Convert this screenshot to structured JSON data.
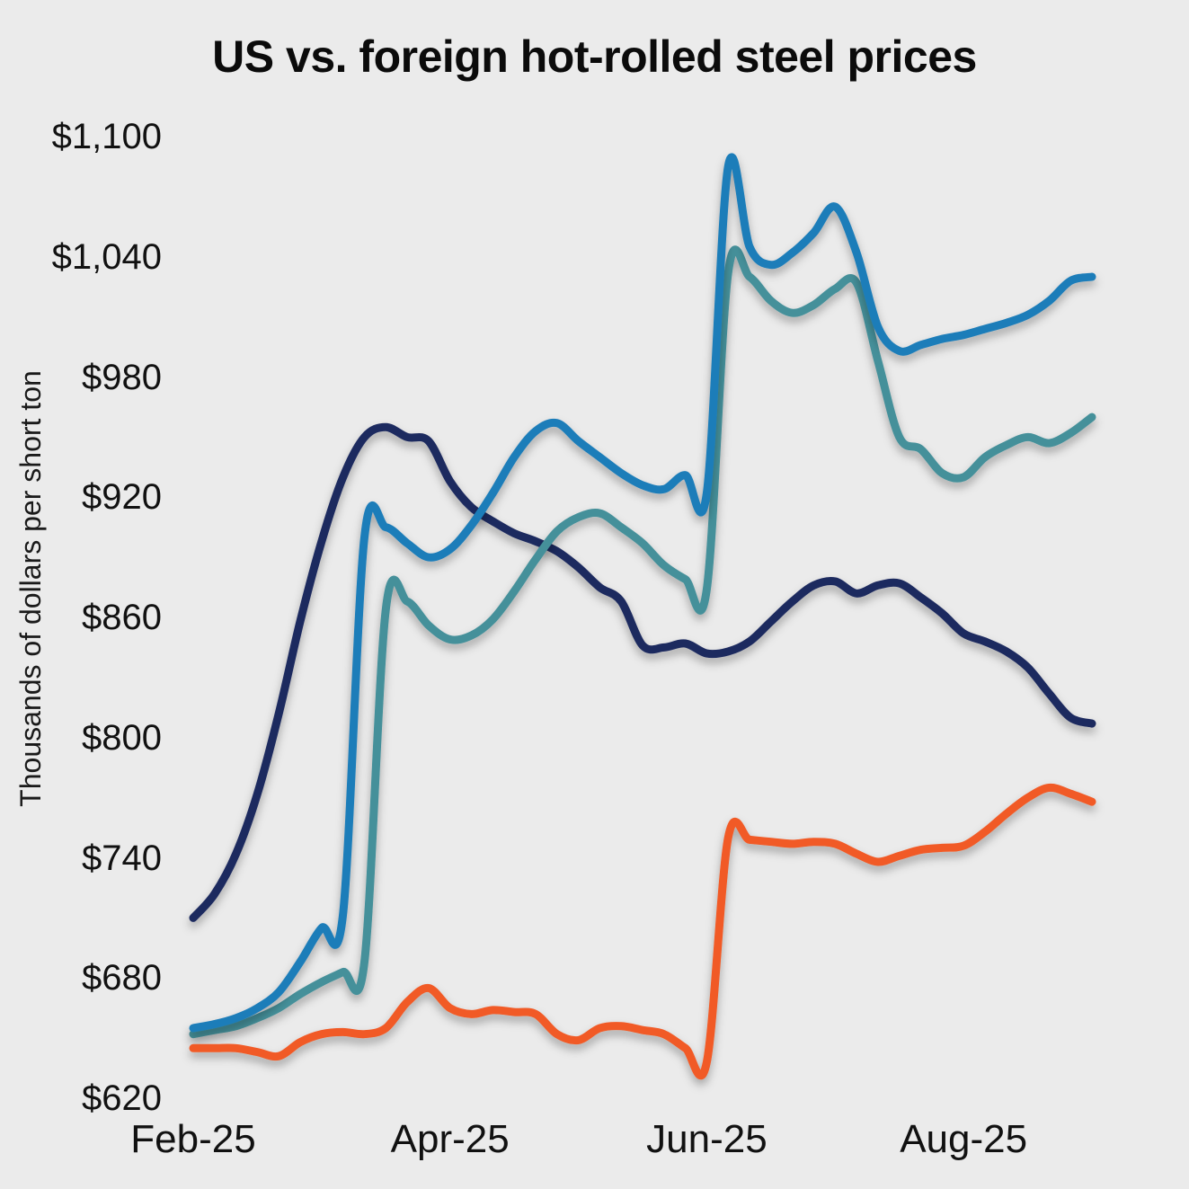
{
  "chart_data": {
    "type": "line",
    "title": "US vs. foreign hot-rolled steel prices",
    "xlabel": "",
    "ylabel": "Thousands of dollars per short ton",
    "units": "dollars per short ton",
    "background_color": "#ebebeb",
    "grid": false,
    "legend_position": "none",
    "ylim": [
      620,
      1100
    ],
    "x_domain_months": [
      0,
      7
    ],
    "x_ticks": [
      {
        "label": "Feb-25",
        "month": 0
      },
      {
        "label": "Apr-25",
        "month": 2
      },
      {
        "label": "Jun-25",
        "month": 4
      },
      {
        "label": "Aug-25",
        "month": 6
      }
    ],
    "y_ticks": [
      {
        "label": "$620",
        "value": 620
      },
      {
        "label": "$680",
        "value": 680
      },
      {
        "label": "$740",
        "value": 740
      },
      {
        "label": "$800",
        "value": 800
      },
      {
        "label": "$860",
        "value": 860
      },
      {
        "label": "$920",
        "value": 920
      },
      {
        "label": "$980",
        "value": 980
      },
      {
        "label": "$1,040",
        "value": 1040
      },
      {
        "label": "$1,100",
        "value": 1100
      }
    ],
    "series": [
      {
        "id": "navy-line",
        "color": "#1f2a5e",
        "values": [
          710,
          722,
          742,
          772,
          812,
          858,
          898,
          930,
          950,
          955,
          950,
          948,
          928,
          915,
          908,
          902,
          898,
          893,
          885,
          875,
          868,
          846,
          845,
          847,
          842,
          843,
          848,
          858,
          868,
          876,
          878,
          872,
          876,
          877,
          870,
          862,
          852,
          848,
          843,
          835,
          822,
          810,
          807
        ]
      },
      {
        "id": "teal-line",
        "color": "#44909a",
        "values": [
          652,
          654,
          656,
          660,
          665,
          672,
          678,
          683,
          688,
          864,
          868,
          856,
          849,
          851,
          859,
          873,
          889,
          903,
          910,
          912,
          905,
          897,
          886,
          879,
          874,
          1032,
          1030,
          1018,
          1012,
          1016,
          1024,
          1027,
          988,
          950,
          944,
          932,
          930,
          940,
          946,
          950,
          947,
          952,
          960
        ]
      },
      {
        "id": "blue-line",
        "color": "#1d7db9",
        "values": [
          655,
          657,
          660,
          665,
          673,
          688,
          705,
          712,
          900,
          905,
          897,
          890,
          894,
          906,
          922,
          940,
          953,
          957,
          948,
          940,
          932,
          926,
          924,
          931,
          922,
          1085,
          1045,
          1036,
          1042,
          1052,
          1065,
          1042,
          1005,
          993,
          996,
          999,
          1001,
          1004,
          1007,
          1011,
          1018,
          1028,
          1030
        ]
      },
      {
        "id": "orange-line",
        "color": "#f15a25",
        "values": [
          645,
          645,
          645,
          643,
          641,
          648,
          652,
          653,
          652,
          655,
          668,
          675,
          665,
          662,
          664,
          663,
          662,
          652,
          649,
          655,
          656,
          654,
          652,
          645,
          638,
          750,
          749,
          748,
          747,
          748,
          747,
          742,
          738,
          741,
          744,
          745,
          746,
          753,
          762,
          770,
          775,
          772,
          768
        ]
      }
    ]
  }
}
